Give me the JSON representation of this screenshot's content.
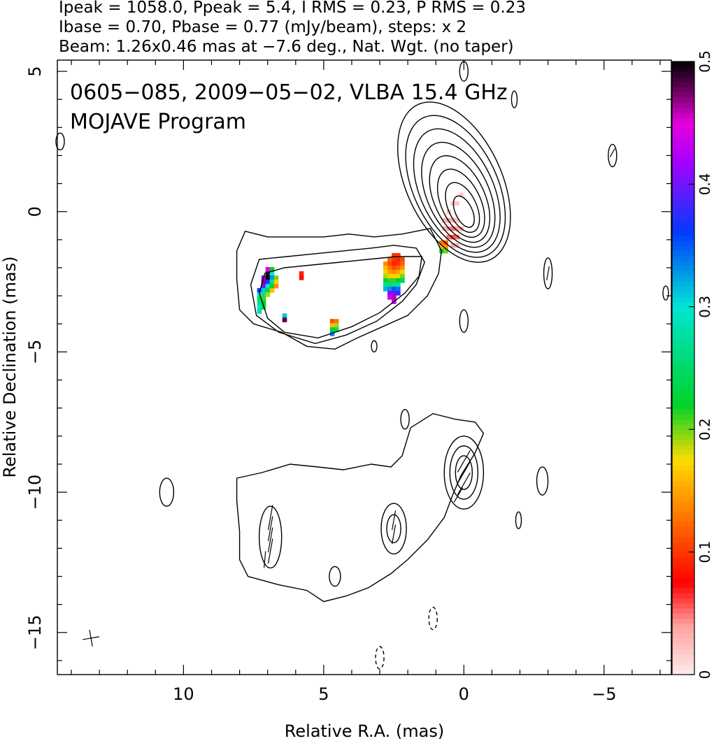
{
  "header": {
    "line1": "Ipeak = 1058.0, Ppeak = 5.4, I RMS = 0.23, P RMS = 0.23",
    "line2": "Ibase = 0.70, Pbase = 0.77 (mJy/beam), steps: x 2",
    "line3": "Beam: 1.26x0.46 mas at −7.6 deg., Nat. Wgt. (no taper)"
  },
  "chart_data": {
    "type": "heatmap",
    "title": "0605−085, 2009−05−02, VLBA 15.4 GHz",
    "subtitle": "MOJAVE Program",
    "xlabel": "Relative R.A. (mas)",
    "ylabel": "Relative Declination (mas)",
    "xlim": [
      14.5,
      -7.4
    ],
    "ylim": [
      -16.5,
      5.4
    ],
    "xticks": [
      {
        "value": 10,
        "label": "10"
      },
      {
        "value": 5,
        "label": "5"
      },
      {
        "value": 0,
        "label": "0"
      },
      {
        "value": -5,
        "label": "−5"
      }
    ],
    "yticks": [
      {
        "value": 5,
        "label": "5"
      },
      {
        "value": 0,
        "label": "0"
      },
      {
        "value": -5,
        "label": "−5"
      },
      {
        "value": -10,
        "label": "−10"
      },
      {
        "value": -15,
        "label": "−15"
      }
    ],
    "colorbar": {
      "range": [
        0,
        0.5
      ],
      "ticks": [
        {
          "value": 0,
          "label": "0"
        },
        {
          "value": 0.1,
          "label": "0.1"
        },
        {
          "value": 0.2,
          "label": "0.2"
        },
        {
          "value": 0.3,
          "label": "0.3"
        },
        {
          "value": 0.4,
          "label": "0.4"
        },
        {
          "value": 0.5,
          "label": "0.5"
        }
      ]
    },
    "core_contours": {
      "center": [
        0,
        0
      ],
      "half_widths_x": [
        0.3,
        0.5,
        0.7,
        0.9,
        1.1,
        1.3,
        1.5,
        1.7
      ],
      "half_heights_y": [
        0.6,
        0.95,
        1.3,
        1.65,
        2.0,
        2.35,
        2.7,
        3.05
      ]
    },
    "upper_contours": [
      [
        [
          1.5,
          -1.6
        ],
        [
          2.4,
          -1.6
        ],
        [
          3.4,
          -1.7
        ],
        [
          4.4,
          -1.8
        ],
        [
          5.4,
          -1.9
        ],
        [
          6.4,
          -2.0
        ],
        [
          7.1,
          -2.2
        ],
        [
          7.3,
          -2.9
        ],
        [
          7.0,
          -3.8
        ],
        [
          6.4,
          -4.3
        ],
        [
          5.2,
          -4.5
        ],
        [
          4.0,
          -4.1
        ],
        [
          3.0,
          -3.6
        ],
        [
          2.1,
          -2.9
        ],
        [
          1.6,
          -2.3
        ]
      ],
      [
        [
          1.7,
          -1.3
        ],
        [
          2.5,
          -1.2
        ],
        [
          3.3,
          -1.3
        ],
        [
          4.3,
          -1.4
        ],
        [
          5.3,
          -1.5
        ],
        [
          6.3,
          -1.6
        ],
        [
          7.3,
          -1.7
        ],
        [
          7.6,
          -2.6
        ],
        [
          7.4,
          -3.7
        ],
        [
          6.6,
          -4.3
        ],
        [
          5.3,
          -4.7
        ],
        [
          4.2,
          -4.4
        ],
        [
          3.1,
          -3.9
        ],
        [
          2.2,
          -3.2
        ],
        [
          1.7,
          -2.6
        ],
        [
          1.4,
          -1.8
        ]
      ],
      [
        [
          1.2,
          -0.6
        ],
        [
          2.2,
          -0.8
        ],
        [
          3.2,
          -0.9
        ],
        [
          4.1,
          -0.8
        ],
        [
          5.0,
          -0.9
        ],
        [
          6.0,
          -0.9
        ],
        [
          7.0,
          -0.9
        ],
        [
          7.8,
          -0.7
        ],
        [
          8.1,
          -1.4
        ],
        [
          8.1,
          -2.4
        ],
        [
          8.0,
          -3.5
        ],
        [
          7.5,
          -4.0
        ],
        [
          6.5,
          -4.3
        ],
        [
          5.6,
          -4.8
        ],
        [
          4.6,
          -4.9
        ],
        [
          3.8,
          -4.5
        ],
        [
          2.9,
          -4.1
        ],
        [
          2.0,
          -3.7
        ],
        [
          1.3,
          -3.0
        ],
        [
          0.9,
          -2.2
        ],
        [
          0.8,
          -1.4
        ]
      ]
    ],
    "lower_contours": [
      [
        [
          0.3,
          -7.4
        ],
        [
          1.1,
          -7.2
        ],
        [
          1.9,
          -7.7
        ],
        [
          2.2,
          -8.7
        ],
        [
          2.6,
          -9.1
        ],
        [
          3.3,
          -9.0
        ],
        [
          4.3,
          -9.2
        ],
        [
          5.2,
          -9.1
        ],
        [
          6.2,
          -9.0
        ],
        [
          7.2,
          -9.3
        ],
        [
          8.1,
          -9.5
        ],
        [
          8.1,
          -10.3
        ],
        [
          8.0,
          -11.4
        ],
        [
          8.0,
          -12.4
        ],
        [
          7.7,
          -13.0
        ],
        [
          6.6,
          -13.3
        ],
        [
          5.6,
          -13.5
        ],
        [
          5.0,
          -13.9
        ],
        [
          4.2,
          -13.7
        ],
        [
          3.4,
          -13.4
        ],
        [
          2.6,
          -12.9
        ],
        [
          2.0,
          -12.4
        ],
        [
          1.3,
          -11.7
        ],
        [
          0.7,
          -10.9
        ],
        [
          0.4,
          -10.1
        ],
        [
          0.1,
          -9.4
        ],
        [
          -0.4,
          -8.6
        ],
        [
          -0.7,
          -7.9
        ],
        [
          -0.4,
          -7.5
        ]
      ]
    ],
    "lower_blobs": [
      {
        "cx": 0,
        "cy": -9.3,
        "rx": 0.7,
        "ry": 1.3
      },
      {
        "cx": 0,
        "cy": -9.3,
        "rx": 0.5,
        "ry": 0.95
      },
      {
        "cx": 0,
        "cy": -9.3,
        "rx": 0.3,
        "ry": 0.6
      },
      {
        "cx": 2.5,
        "cy": -11.3,
        "rx": 0.45,
        "ry": 0.9
      },
      {
        "cx": 2.5,
        "cy": -11.3,
        "rx": 0.25,
        "ry": 0.5
      },
      {
        "cx": 6.9,
        "cy": -11.6,
        "rx": 0.4,
        "ry": 1.1
      },
      {
        "cx": 4.6,
        "cy": -13.0,
        "rx": 0.2,
        "ry": 0.35
      }
    ],
    "isolated_blobs": [
      {
        "cx": 14.4,
        "cy": 2.5,
        "rx": 0.15,
        "ry": 0.3,
        "dashed": false
      },
      {
        "cx": 0.0,
        "cy": 5.0,
        "rx": 0.15,
        "ry": 0.35,
        "dashed": false
      },
      {
        "cx": -1.8,
        "cy": 4.0,
        "rx": 0.1,
        "ry": 0.3,
        "dashed": false
      },
      {
        "cx": -5.3,
        "cy": 2.0,
        "rx": 0.15,
        "ry": 0.4,
        "dashed": false
      },
      {
        "cx": -3.0,
        "cy": -2.2,
        "rx": 0.15,
        "ry": 0.55,
        "dashed": false
      },
      {
        "cx": -7.2,
        "cy": -2.9,
        "rx": 0.1,
        "ry": 0.25,
        "dashed": false
      },
      {
        "cx": 0.0,
        "cy": -3.9,
        "rx": 0.15,
        "ry": 0.4,
        "dashed": false
      },
      {
        "cx": 3.2,
        "cy": -4.8,
        "rx": 0.1,
        "ry": 0.2,
        "dashed": false
      },
      {
        "cx": 2.1,
        "cy": -7.4,
        "rx": 0.15,
        "ry": 0.35,
        "dashed": false
      },
      {
        "cx": 10.6,
        "cy": -10.0,
        "rx": 0.25,
        "ry": 0.5,
        "dashed": false
      },
      {
        "cx": -2.8,
        "cy": -9.6,
        "rx": 0.2,
        "ry": 0.5,
        "dashed": false
      },
      {
        "cx": -1.95,
        "cy": -11.0,
        "rx": 0.1,
        "ry": 0.3,
        "dashed": false
      },
      {
        "cx": 1.1,
        "cy": -14.5,
        "rx": 0.15,
        "ry": 0.4,
        "dashed": true
      },
      {
        "cx": 3.0,
        "cy": -15.9,
        "rx": 0.15,
        "ry": 0.4,
        "dashed": true
      }
    ],
    "pol_pixels": [
      {
        "x": 7.0,
        "y": -2.2,
        "v": 0.49
      },
      {
        "x": 6.85,
        "y": -2.2,
        "v": 0.3
      },
      {
        "x": 7.0,
        "y": -2.05,
        "v": 0.45
      },
      {
        "x": 6.85,
        "y": -2.05,
        "v": 0.22
      },
      {
        "x": 7.15,
        "y": -2.35,
        "v": 0.42
      },
      {
        "x": 7.0,
        "y": -2.35,
        "v": 0.5
      },
      {
        "x": 6.85,
        "y": -2.35,
        "v": 0.33
      },
      {
        "x": 6.7,
        "y": -2.35,
        "v": 0.2
      },
      {
        "x": 7.15,
        "y": -2.5,
        "v": 0.47
      },
      {
        "x": 7.0,
        "y": -2.5,
        "v": 0.37
      },
      {
        "x": 6.85,
        "y": -2.5,
        "v": 0.27
      },
      {
        "x": 6.7,
        "y": -2.5,
        "v": 0.17
      },
      {
        "x": 7.15,
        "y": -2.65,
        "v": 0.4
      },
      {
        "x": 7.0,
        "y": -2.65,
        "v": 0.3
      },
      {
        "x": 6.85,
        "y": -2.65,
        "v": 0.22
      },
      {
        "x": 6.7,
        "y": -2.65,
        "v": 0.14
      },
      {
        "x": 7.3,
        "y": -2.8,
        "v": 0.36
      },
      {
        "x": 7.15,
        "y": -2.8,
        "v": 0.31
      },
      {
        "x": 7.0,
        "y": -2.8,
        "v": 0.24
      },
      {
        "x": 6.85,
        "y": -2.8,
        "v": 0.16
      },
      {
        "x": 7.3,
        "y": -2.95,
        "v": 0.3
      },
      {
        "x": 7.15,
        "y": -2.95,
        "v": 0.27
      },
      {
        "x": 7.0,
        "y": -2.95,
        "v": 0.19
      },
      {
        "x": 7.3,
        "y": -3.1,
        "v": 0.25
      },
      {
        "x": 7.15,
        "y": -3.1,
        "v": 0.21
      },
      {
        "x": 7.3,
        "y": -3.25,
        "v": 0.27
      },
      {
        "x": 7.15,
        "y": -3.25,
        "v": 0.22
      },
      {
        "x": 7.3,
        "y": -3.4,
        "v": 0.3
      },
      {
        "x": 7.15,
        "y": -3.4,
        "v": 0.23
      },
      {
        "x": 7.3,
        "y": -3.55,
        "v": 0.28
      },
      {
        "x": 6.4,
        "y": -3.7,
        "v": 0.31
      },
      {
        "x": 6.4,
        "y": -3.85,
        "v": 0.48
      },
      {
        "x": 5.8,
        "y": -2.2,
        "v": 0.09
      },
      {
        "x": 5.8,
        "y": -2.35,
        "v": 0.08
      },
      {
        "x": 4.7,
        "y": -3.9,
        "v": 0.11
      },
      {
        "x": 4.55,
        "y": -3.9,
        "v": 0.13
      },
      {
        "x": 4.7,
        "y": -4.05,
        "v": 0.16
      },
      {
        "x": 4.55,
        "y": -4.05,
        "v": 0.19
      },
      {
        "x": 4.7,
        "y": -4.2,
        "v": 0.22
      },
      {
        "x": 4.55,
        "y": -4.2,
        "v": 0.25
      },
      {
        "x": 4.7,
        "y": -4.35,
        "v": 0.33
      },
      {
        "x": 2.5,
        "y": -1.55,
        "v": 0.1
      },
      {
        "x": 2.35,
        "y": -1.55,
        "v": 0.1
      },
      {
        "x": 2.65,
        "y": -1.7,
        "v": 0.12
      },
      {
        "x": 2.5,
        "y": -1.7,
        "v": 0.1
      },
      {
        "x": 2.35,
        "y": -1.7,
        "v": 0.09
      },
      {
        "x": 2.2,
        "y": -1.7,
        "v": 0.11
      },
      {
        "x": 2.8,
        "y": -1.85,
        "v": 0.14
      },
      {
        "x": 2.65,
        "y": -1.85,
        "v": 0.11
      },
      {
        "x": 2.5,
        "y": -1.85,
        "v": 0.09
      },
      {
        "x": 2.35,
        "y": -1.85,
        "v": 0.1
      },
      {
        "x": 2.2,
        "y": -1.85,
        "v": 0.12
      },
      {
        "x": 2.8,
        "y": -2.0,
        "v": 0.16
      },
      {
        "x": 2.65,
        "y": -2.0,
        "v": 0.13
      },
      {
        "x": 2.5,
        "y": -2.0,
        "v": 0.11
      },
      {
        "x": 2.35,
        "y": -2.0,
        "v": 0.12
      },
      {
        "x": 2.2,
        "y": -2.0,
        "v": 0.14
      },
      {
        "x": 2.8,
        "y": -2.15,
        "v": 0.17
      },
      {
        "x": 2.65,
        "y": -2.15,
        "v": 0.15
      },
      {
        "x": 2.5,
        "y": -2.15,
        "v": 0.14
      },
      {
        "x": 2.35,
        "y": -2.15,
        "v": 0.15
      },
      {
        "x": 2.2,
        "y": -2.15,
        "v": 0.17
      },
      {
        "x": 2.8,
        "y": -2.3,
        "v": 0.19
      },
      {
        "x": 2.65,
        "y": -2.3,
        "v": 0.18
      },
      {
        "x": 2.5,
        "y": -2.3,
        "v": 0.17
      },
      {
        "x": 2.35,
        "y": -2.3,
        "v": 0.18
      },
      {
        "x": 2.2,
        "y": -2.3,
        "v": 0.2
      },
      {
        "x": 2.8,
        "y": -2.45,
        "v": 0.22
      },
      {
        "x": 2.65,
        "y": -2.45,
        "v": 0.21
      },
      {
        "x": 2.5,
        "y": -2.45,
        "v": 0.21
      },
      {
        "x": 2.35,
        "y": -2.45,
        "v": 0.22
      },
      {
        "x": 2.2,
        "y": -2.45,
        "v": 0.24
      },
      {
        "x": 2.8,
        "y": -2.6,
        "v": 0.27
      },
      {
        "x": 2.65,
        "y": -2.6,
        "v": 0.26
      },
      {
        "x": 2.5,
        "y": -2.6,
        "v": 0.27
      },
      {
        "x": 2.35,
        "y": -2.6,
        "v": 0.28
      },
      {
        "x": 2.8,
        "y": -2.75,
        "v": 0.32
      },
      {
        "x": 2.65,
        "y": -2.75,
        "v": 0.33
      },
      {
        "x": 2.5,
        "y": -2.75,
        "v": 0.35
      },
      {
        "x": 2.35,
        "y": -2.75,
        "v": 0.34
      },
      {
        "x": 2.65,
        "y": -2.9,
        "v": 0.41
      },
      {
        "x": 2.5,
        "y": -2.9,
        "v": 0.4
      },
      {
        "x": 2.35,
        "y": -2.9,
        "v": 0.38
      },
      {
        "x": 2.65,
        "y": -3.05,
        "v": 0.44
      },
      {
        "x": 2.5,
        "y": -3.05,
        "v": 0.46
      },
      {
        "x": 2.5,
        "y": -3.2,
        "v": 0.43
      },
      {
        "x": 0.8,
        "y": -1.1,
        "v": 0.13
      },
      {
        "x": 0.65,
        "y": -1.1,
        "v": 0.12
      },
      {
        "x": 0.8,
        "y": -1.25,
        "v": 0.16
      },
      {
        "x": 0.65,
        "y": -1.25,
        "v": 0.14
      },
      {
        "x": 0.8,
        "y": -1.4,
        "v": 0.22
      },
      {
        "x": 0.65,
        "y": -1.4,
        "v": 0.2
      },
      {
        "x": 0.7,
        "y": -0.3,
        "v": 0.03
      },
      {
        "x": 0.55,
        "y": -0.3,
        "v": 0.04
      },
      {
        "x": 0.4,
        "y": -0.3,
        "v": 0.03
      },
      {
        "x": 0.25,
        "y": -0.3,
        "v": 0.02
      },
      {
        "x": 0.7,
        "y": -0.6,
        "v": 0.03
      },
      {
        "x": 0.55,
        "y": -0.6,
        "v": 0.04
      },
      {
        "x": 0.4,
        "y": -0.6,
        "v": 0.05
      },
      {
        "x": 0.25,
        "y": -0.6,
        "v": 0.04
      },
      {
        "x": 0.1,
        "y": -0.6,
        "v": 0.03
      },
      {
        "x": 0.55,
        "y": -0.9,
        "v": 0.05
      },
      {
        "x": 0.4,
        "y": -0.9,
        "v": 0.06
      },
      {
        "x": 0.25,
        "y": -0.9,
        "v": 0.05
      },
      {
        "x": 0.55,
        "y": -0.0,
        "v": 0.02
      },
      {
        "x": 0.4,
        "y": 0.3,
        "v": 0.02
      },
      {
        "x": 0.25,
        "y": 0.3,
        "v": 0.02
      },
      {
        "x": 0.1,
        "y": 0.6,
        "v": 0.02
      },
      {
        "x": 0.4,
        "y": -1.2,
        "v": 0.04
      },
      {
        "x": 0.25,
        "y": -1.2,
        "v": 0.03
      }
    ],
    "evpa_vectors": [
      {
        "x": 6.9,
        "y": -10.9,
        "angle": 80,
        "len": 0.9
      },
      {
        "x": 6.9,
        "y": -11.3,
        "angle": 80,
        "len": 0.9
      },
      {
        "x": 6.9,
        "y": -11.7,
        "angle": 80,
        "len": 0.9
      },
      {
        "x": 6.9,
        "y": -12.1,
        "angle": 80,
        "len": 0.9
      },
      {
        "x": 7.1,
        "y": -12.4,
        "angle": 85,
        "len": 0.6
      },
      {
        "x": 0.0,
        "y": -8.9,
        "angle": 60,
        "len": 0.9
      },
      {
        "x": 0.0,
        "y": -9.3,
        "angle": 60,
        "len": 0.9
      },
      {
        "x": 0.0,
        "y": -9.7,
        "angle": 60,
        "len": 0.9
      },
      {
        "x": 0.2,
        "y": -10.1,
        "angle": 60,
        "len": 0.6
      },
      {
        "x": 2.5,
        "y": -11.0,
        "angle": 80,
        "len": 0.7
      },
      {
        "x": 2.5,
        "y": -11.5,
        "angle": 80,
        "len": 0.7
      },
      {
        "x": -5.3,
        "y": 2.1,
        "angle": 60,
        "len": 0.35
      },
      {
        "x": -3.0,
        "y": -2.2,
        "angle": 80,
        "len": 0.5
      },
      {
        "x": 13.3,
        "y": -15.2,
        "angle": 10,
        "len": 0.6
      },
      {
        "x": 13.3,
        "y": -15.2,
        "angle": 100,
        "len": 0.6
      }
    ]
  }
}
